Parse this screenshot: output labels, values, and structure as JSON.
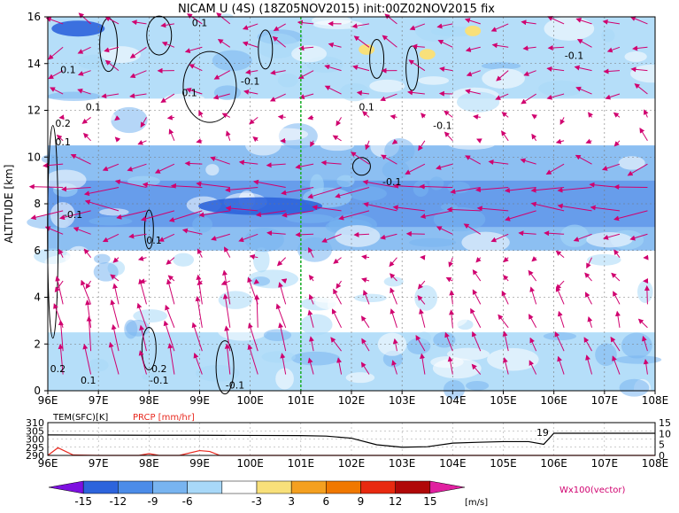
{
  "title": "NICAM U (4S) (18Z05NOV2015) init:00Z02NOV2015 fix",
  "colors": {
    "vector": "#d0006f",
    "midline": "#22b030",
    "temp_line": "#000000",
    "prcp_line": "#e8281e",
    "scale": [
      "#7d10e0",
      "#2d64dc",
      "#4c8ce8",
      "#78b4f0",
      "#a8d8f8",
      "#ffffff",
      "#f8e07a",
      "#f4a020",
      "#f07800",
      "#e82a10",
      "#b00808",
      "#e020a0"
    ]
  },
  "chart_data": [
    {
      "type": "heatmap",
      "title": "NICAM U (4S) (18Z05NOV2015) init:00Z02NOV2015 fix",
      "ylabel": "ALTITUDE [km]",
      "xlabel": "",
      "x_ticks": [
        "96E",
        "97E",
        "98E",
        "99E",
        "100E",
        "101E",
        "102E",
        "103E",
        "104E",
        "105E",
        "106E",
        "107E",
        "108E"
      ],
      "y_ticks": [
        "0",
        "2",
        "4",
        "6",
        "8",
        "10",
        "12",
        "14",
        "16"
      ],
      "xlim": [
        96,
        108
      ],
      "ylim": [
        0,
        16
      ],
      "grid": true,
      "vertical_marker_lon": 101,
      "wind_bands": [
        {
          "y0": 0,
          "y1": 2.5,
          "u": -4
        },
        {
          "y0": 2.5,
          "y1": 6,
          "u": -2
        },
        {
          "y0": 6,
          "y1": 7,
          "u": -6
        },
        {
          "y0": 7,
          "y1": 9,
          "u": -11
        },
        {
          "y0": 9,
          "y1": 10.5,
          "u": -6
        },
        {
          "y0": 10.5,
          "y1": 12.5,
          "u": -2
        },
        {
          "y0": 12.5,
          "y1": 16,
          "u": -5
        }
      ],
      "contour_labels": [
        {
          "text": "0.1",
          "x": 99.0,
          "y": 15.6
        },
        {
          "text": "0.1",
          "x": 96.4,
          "y": 13.6
        },
        {
          "text": "0.1",
          "x": 96.9,
          "y": 12.0
        },
        {
          "text": "0.1",
          "x": 98.8,
          "y": 12.6
        },
        {
          "text": "-0.1",
          "x": 100.0,
          "y": 13.1
        },
        {
          "text": "0.2",
          "x": 96.3,
          "y": 11.3
        },
        {
          "text": "0.1",
          "x": 96.3,
          "y": 10.5
        },
        {
          "text": "0.1",
          "x": 102.3,
          "y": 12.0
        },
        {
          "text": "-0.1",
          "x": 103.8,
          "y": 11.2
        },
        {
          "text": "-0.1",
          "x": 106.4,
          "y": 14.2
        },
        {
          "text": "-0.1",
          "x": 102.8,
          "y": 8.8
        },
        {
          "text": "0.1",
          "x": 98.1,
          "y": 6.3
        },
        {
          "text": "-0.1",
          "x": 96.5,
          "y": 7.4
        },
        {
          "text": "0.2",
          "x": 96.2,
          "y": 0.8
        },
        {
          "text": "0.1",
          "x": 96.8,
          "y": 0.3
        },
        {
          "text": "0.2",
          "x": 98.2,
          "y": 0.8
        },
        {
          "text": "-0.1",
          "x": 98.2,
          "y": 0.3
        },
        {
          "text": "-0.1",
          "x": 99.7,
          "y": 0.1
        }
      ]
    },
    {
      "type": "line",
      "title": "",
      "left_label": "TEM(SFC)[K]",
      "right_label": "PRCP [mm/hr]",
      "y_ticks_left": [
        "290",
        "295",
        "300",
        "305",
        "310"
      ],
      "y_ticks_right": [
        "0",
        "5",
        "10",
        "15"
      ],
      "ylim_left": [
        290,
        310
      ],
      "ylim_right": [
        0,
        15
      ],
      "x": [
        96,
        97,
        98,
        99,
        100,
        101,
        101.5,
        102,
        102.5,
        103,
        103.5,
        104,
        104.5,
        105,
        105.5,
        105.8,
        106,
        107,
        108
      ],
      "series": [
        {
          "name": "TEM(SFC)[K]",
          "values": [
            302.5,
            302.4,
            302.3,
            302.3,
            302.2,
            302.1,
            301.8,
            300.5,
            296.5,
            295.0,
            295.3,
            297.5,
            298.0,
            298.4,
            298.4,
            296.8,
            303.5,
            303.5,
            303.5
          ]
        },
        {
          "name": "PRCP [mm/hr]",
          "x": [
            96,
            96.2,
            96.5,
            97,
            97.8,
            98.0,
            98.2,
            98.6,
            99.0,
            99.2,
            99.4,
            100,
            108
          ],
          "values": [
            0,
            3.5,
            0.2,
            0,
            0,
            0.8,
            0,
            0,
            2.2,
            1.8,
            0,
            0,
            0
          ]
        }
      ],
      "annotation": {
        "text": "19",
        "x": 105.9,
        "y": 304
      }
    }
  ],
  "colorbar": {
    "ticks": [
      "-15",
      "-12",
      "-9",
      "-6",
      "-3",
      "3",
      "6",
      "9",
      "12",
      "15"
    ],
    "unit": "[m/s]",
    "vector_note": "Wx100(vector)"
  }
}
